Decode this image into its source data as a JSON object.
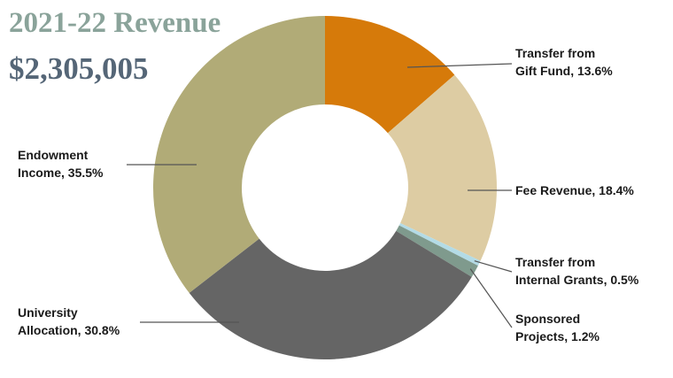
{
  "header": {
    "title": "2021-22 Revenue",
    "total": "$2,305,005"
  },
  "colors": {
    "title": "#8aa39a",
    "total": "#556677",
    "leader_line": "#555555"
  },
  "chart_data": {
    "type": "pie",
    "style": "donut",
    "title": "2021-22 Revenue",
    "total": "$2,305,005",
    "start": "top, clockwise",
    "slices": [
      {
        "key": "gift",
        "line1": "Transfer from",
        "line2": "Gift Fund, 13.6%",
        "value": 13.6,
        "color": "#d67a0a"
      },
      {
        "key": "fee",
        "line1": "Fee Revenue, 18.4%",
        "line2": "",
        "value": 18.4,
        "color": "#ddcca3"
      },
      {
        "key": "grants",
        "line1": "Transfer from",
        "line2": "Internal Grants, 0.5%",
        "value": 0.5,
        "color": "#b3dbe6"
      },
      {
        "key": "sponsored",
        "line1": "Sponsored",
        "line2": "Projects, 1.2%",
        "value": 1.2,
        "color": "#7f9a8d"
      },
      {
        "key": "university",
        "line1": "University",
        "line2": "Allocation, 30.8%",
        "value": 30.8,
        "color": "#656565"
      },
      {
        "key": "endowment",
        "line1": "Endowment",
        "line2": "Income, 35.5%",
        "value": 35.5,
        "color": "#b1ab77"
      }
    ]
  }
}
